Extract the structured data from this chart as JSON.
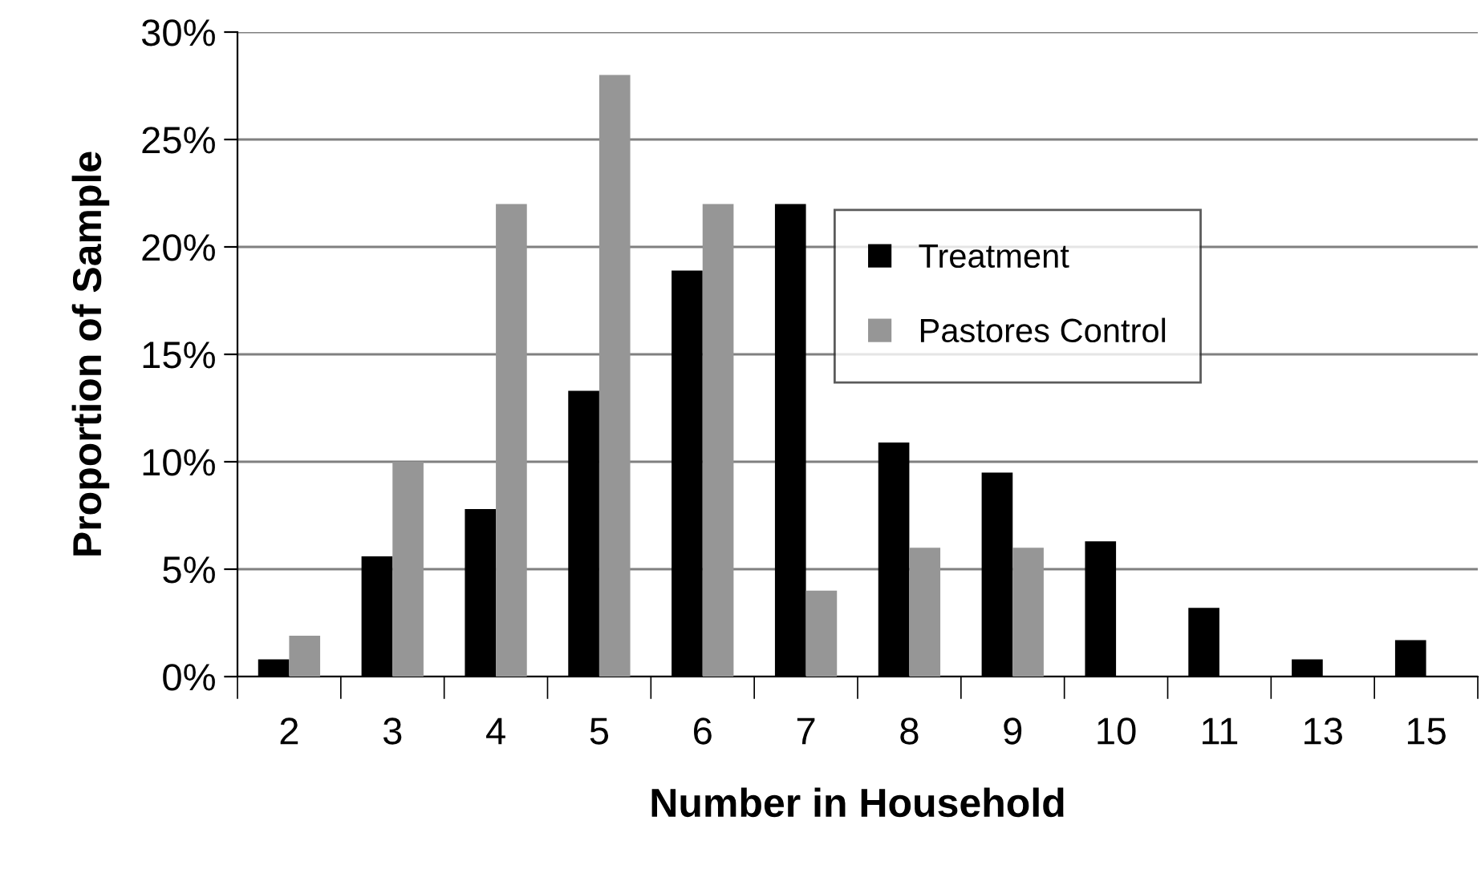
{
  "chart_data": {
    "type": "bar",
    "xlabel": "Number in Household",
    "ylabel": "Proportion of Sample",
    "categories": [
      "2",
      "3",
      "4",
      "5",
      "6",
      "7",
      "8",
      "9",
      "10",
      "11",
      "13",
      "15"
    ],
    "series": [
      {
        "name": "Treatment",
        "color": "#000000",
        "values": [
          0.8,
          5.6,
          7.8,
          13.3,
          18.9,
          22.0,
          10.9,
          9.5,
          6.3,
          3.2,
          0.8,
          1.7
        ]
      },
      {
        "name": "Pastores Control",
        "color": "#969696",
        "values": [
          1.9,
          10,
          22,
          28,
          22,
          4,
          6,
          6,
          0,
          0,
          0,
          0
        ]
      }
    ],
    "ylim": [
      0,
      30
    ],
    "yticks": [
      {
        "value": 0,
        "label": "0%"
      },
      {
        "value": 5,
        "label": "5%"
      },
      {
        "value": 10,
        "label": "10%"
      },
      {
        "value": 15,
        "label": "15%"
      },
      {
        "value": 20,
        "label": "20%"
      },
      {
        "value": 25,
        "label": "25%"
      },
      {
        "value": 30,
        "label": "30%"
      }
    ],
    "grid": "y",
    "legend": "top right"
  }
}
